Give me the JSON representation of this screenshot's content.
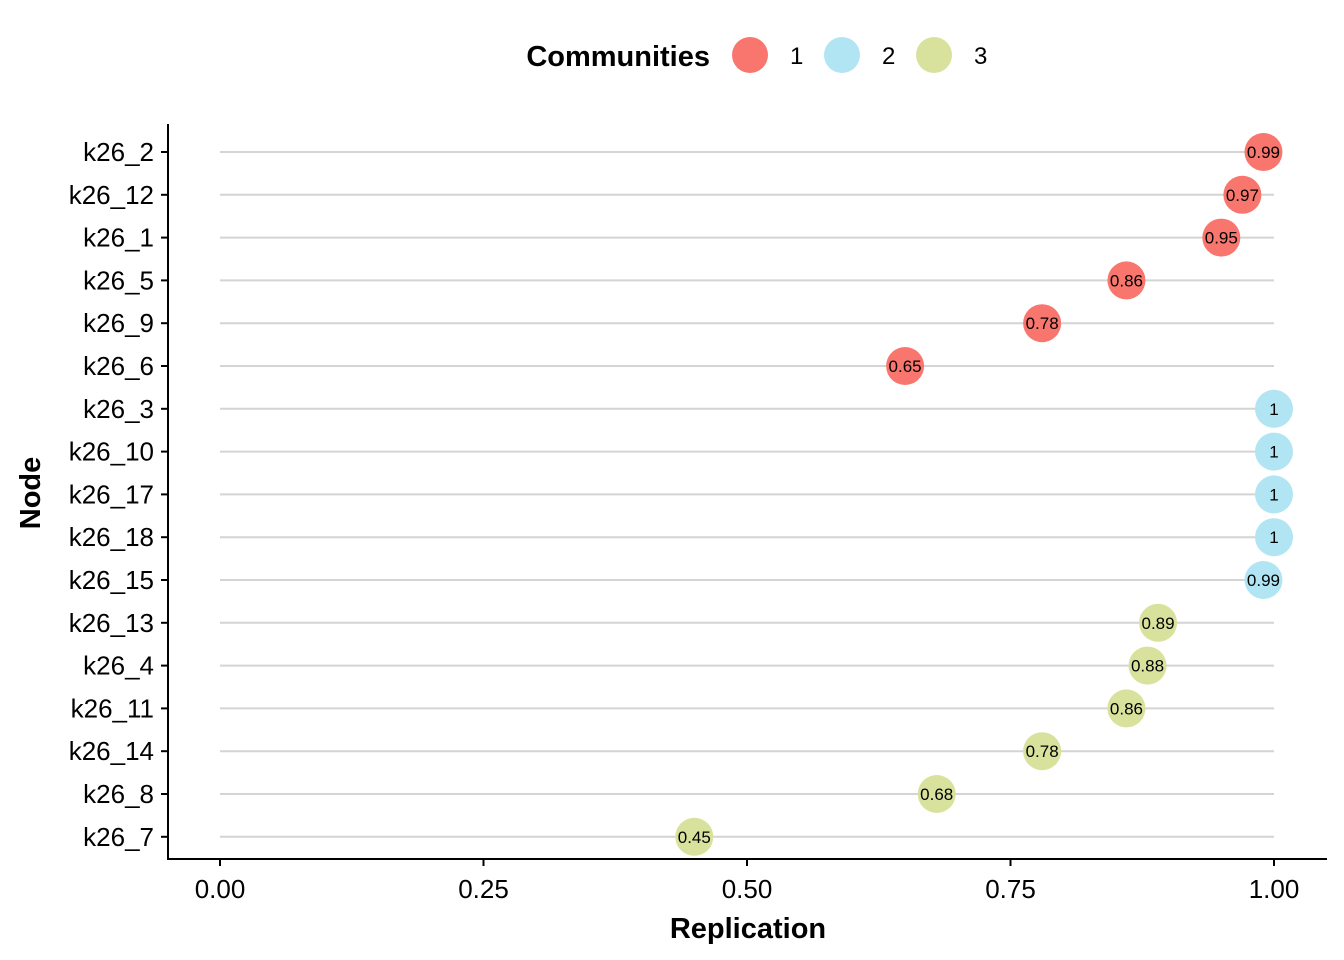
{
  "chart_data": {
    "type": "scatter",
    "xlabel": "Replication",
    "ylabel": "Node",
    "xlim": [
      0,
      1
    ],
    "x_ticks": [
      "0.00",
      "0.25",
      "0.50",
      "0.75",
      "1.00"
    ],
    "x_tick_values": [
      0,
      0.25,
      0.5,
      0.75,
      1.0
    ],
    "legend": {
      "title": "Communities",
      "position": "top",
      "entries": [
        {
          "label": "1",
          "color": "#F8766D"
        },
        {
          "label": "2",
          "color": "#B2E5F3"
        },
        {
          "label": "3",
          "color": "#D9E29C"
        }
      ]
    },
    "points": [
      {
        "node": "k26_2",
        "value": 0.99,
        "label": "0.99",
        "community": "1"
      },
      {
        "node": "k26_12",
        "value": 0.97,
        "label": "0.97",
        "community": "1"
      },
      {
        "node": "k26_1",
        "value": 0.95,
        "label": "0.95",
        "community": "1"
      },
      {
        "node": "k26_5",
        "value": 0.86,
        "label": "0.86",
        "community": "1"
      },
      {
        "node": "k26_9",
        "value": 0.78,
        "label": "0.78",
        "community": "1"
      },
      {
        "node": "k26_6",
        "value": 0.65,
        "label": "0.65",
        "community": "1"
      },
      {
        "node": "k26_3",
        "value": 1.0,
        "label": "1",
        "community": "2"
      },
      {
        "node": "k26_10",
        "value": 1.0,
        "label": "1",
        "community": "2"
      },
      {
        "node": "k26_17",
        "value": 1.0,
        "label": "1",
        "community": "2"
      },
      {
        "node": "k26_18",
        "value": 1.0,
        "label": "1",
        "community": "2"
      },
      {
        "node": "k26_15",
        "value": 0.99,
        "label": "0.99",
        "community": "2"
      },
      {
        "node": "k26_13",
        "value": 0.89,
        "label": "0.89",
        "community": "3"
      },
      {
        "node": "k26_4",
        "value": 0.88,
        "label": "0.88",
        "community": "3"
      },
      {
        "node": "k26_11",
        "value": 0.86,
        "label": "0.86",
        "community": "3"
      },
      {
        "node": "k26_14",
        "value": 0.78,
        "label": "0.78",
        "community": "3"
      },
      {
        "node": "k26_8",
        "value": 0.68,
        "label": "0.68",
        "community": "3"
      },
      {
        "node": "k26_7",
        "value": 0.45,
        "label": "0.45",
        "community": "3"
      }
    ]
  }
}
